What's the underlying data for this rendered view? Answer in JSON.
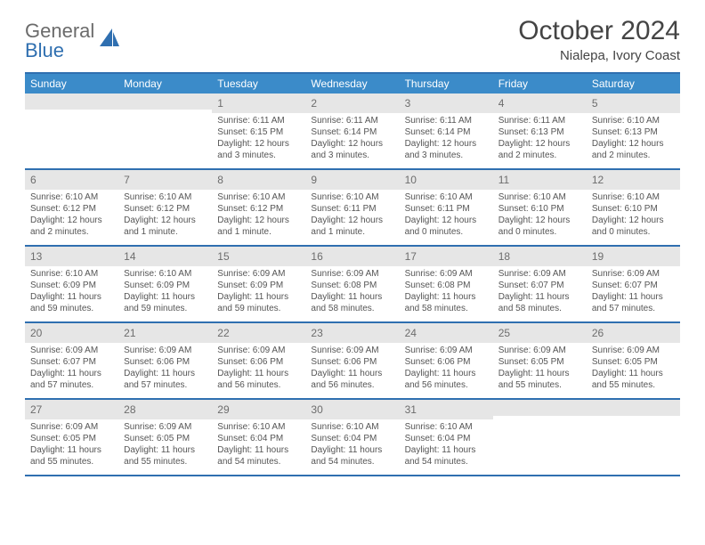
{
  "logo": {
    "textGray": "General",
    "textBlue": "Blue"
  },
  "title": "October 2024",
  "subtitle": "Nialepa, Ivory Coast",
  "colors": {
    "headerBar": "#3b8bc9",
    "borderBlue": "#2f6fb0",
    "dayNumBg": "#e6e6e6",
    "logoGray": "#6b6b6b",
    "logoBlue": "#2f6fb0"
  },
  "dow": [
    "Sunday",
    "Monday",
    "Tuesday",
    "Wednesday",
    "Thursday",
    "Friday",
    "Saturday"
  ],
  "weeks": [
    [
      {
        "n": "",
        "sunrise": "",
        "sunset": "",
        "daylight": ""
      },
      {
        "n": "",
        "sunrise": "",
        "sunset": "",
        "daylight": ""
      },
      {
        "n": "1",
        "sunrise": "Sunrise: 6:11 AM",
        "sunset": "Sunset: 6:15 PM",
        "daylight": "Daylight: 12 hours and 3 minutes."
      },
      {
        "n": "2",
        "sunrise": "Sunrise: 6:11 AM",
        "sunset": "Sunset: 6:14 PM",
        "daylight": "Daylight: 12 hours and 3 minutes."
      },
      {
        "n": "3",
        "sunrise": "Sunrise: 6:11 AM",
        "sunset": "Sunset: 6:14 PM",
        "daylight": "Daylight: 12 hours and 3 minutes."
      },
      {
        "n": "4",
        "sunrise": "Sunrise: 6:11 AM",
        "sunset": "Sunset: 6:13 PM",
        "daylight": "Daylight: 12 hours and 2 minutes."
      },
      {
        "n": "5",
        "sunrise": "Sunrise: 6:10 AM",
        "sunset": "Sunset: 6:13 PM",
        "daylight": "Daylight: 12 hours and 2 minutes."
      }
    ],
    [
      {
        "n": "6",
        "sunrise": "Sunrise: 6:10 AM",
        "sunset": "Sunset: 6:12 PM",
        "daylight": "Daylight: 12 hours and 2 minutes."
      },
      {
        "n": "7",
        "sunrise": "Sunrise: 6:10 AM",
        "sunset": "Sunset: 6:12 PM",
        "daylight": "Daylight: 12 hours and 1 minute."
      },
      {
        "n": "8",
        "sunrise": "Sunrise: 6:10 AM",
        "sunset": "Sunset: 6:12 PM",
        "daylight": "Daylight: 12 hours and 1 minute."
      },
      {
        "n": "9",
        "sunrise": "Sunrise: 6:10 AM",
        "sunset": "Sunset: 6:11 PM",
        "daylight": "Daylight: 12 hours and 1 minute."
      },
      {
        "n": "10",
        "sunrise": "Sunrise: 6:10 AM",
        "sunset": "Sunset: 6:11 PM",
        "daylight": "Daylight: 12 hours and 0 minutes."
      },
      {
        "n": "11",
        "sunrise": "Sunrise: 6:10 AM",
        "sunset": "Sunset: 6:10 PM",
        "daylight": "Daylight: 12 hours and 0 minutes."
      },
      {
        "n": "12",
        "sunrise": "Sunrise: 6:10 AM",
        "sunset": "Sunset: 6:10 PM",
        "daylight": "Daylight: 12 hours and 0 minutes."
      }
    ],
    [
      {
        "n": "13",
        "sunrise": "Sunrise: 6:10 AM",
        "sunset": "Sunset: 6:09 PM",
        "daylight": "Daylight: 11 hours and 59 minutes."
      },
      {
        "n": "14",
        "sunrise": "Sunrise: 6:10 AM",
        "sunset": "Sunset: 6:09 PM",
        "daylight": "Daylight: 11 hours and 59 minutes."
      },
      {
        "n": "15",
        "sunrise": "Sunrise: 6:09 AM",
        "sunset": "Sunset: 6:09 PM",
        "daylight": "Daylight: 11 hours and 59 minutes."
      },
      {
        "n": "16",
        "sunrise": "Sunrise: 6:09 AM",
        "sunset": "Sunset: 6:08 PM",
        "daylight": "Daylight: 11 hours and 58 minutes."
      },
      {
        "n": "17",
        "sunrise": "Sunrise: 6:09 AM",
        "sunset": "Sunset: 6:08 PM",
        "daylight": "Daylight: 11 hours and 58 minutes."
      },
      {
        "n": "18",
        "sunrise": "Sunrise: 6:09 AM",
        "sunset": "Sunset: 6:07 PM",
        "daylight": "Daylight: 11 hours and 58 minutes."
      },
      {
        "n": "19",
        "sunrise": "Sunrise: 6:09 AM",
        "sunset": "Sunset: 6:07 PM",
        "daylight": "Daylight: 11 hours and 57 minutes."
      }
    ],
    [
      {
        "n": "20",
        "sunrise": "Sunrise: 6:09 AM",
        "sunset": "Sunset: 6:07 PM",
        "daylight": "Daylight: 11 hours and 57 minutes."
      },
      {
        "n": "21",
        "sunrise": "Sunrise: 6:09 AM",
        "sunset": "Sunset: 6:06 PM",
        "daylight": "Daylight: 11 hours and 57 minutes."
      },
      {
        "n": "22",
        "sunrise": "Sunrise: 6:09 AM",
        "sunset": "Sunset: 6:06 PM",
        "daylight": "Daylight: 11 hours and 56 minutes."
      },
      {
        "n": "23",
        "sunrise": "Sunrise: 6:09 AM",
        "sunset": "Sunset: 6:06 PM",
        "daylight": "Daylight: 11 hours and 56 minutes."
      },
      {
        "n": "24",
        "sunrise": "Sunrise: 6:09 AM",
        "sunset": "Sunset: 6:06 PM",
        "daylight": "Daylight: 11 hours and 56 minutes."
      },
      {
        "n": "25",
        "sunrise": "Sunrise: 6:09 AM",
        "sunset": "Sunset: 6:05 PM",
        "daylight": "Daylight: 11 hours and 55 minutes."
      },
      {
        "n": "26",
        "sunrise": "Sunrise: 6:09 AM",
        "sunset": "Sunset: 6:05 PM",
        "daylight": "Daylight: 11 hours and 55 minutes."
      }
    ],
    [
      {
        "n": "27",
        "sunrise": "Sunrise: 6:09 AM",
        "sunset": "Sunset: 6:05 PM",
        "daylight": "Daylight: 11 hours and 55 minutes."
      },
      {
        "n": "28",
        "sunrise": "Sunrise: 6:09 AM",
        "sunset": "Sunset: 6:05 PM",
        "daylight": "Daylight: 11 hours and 55 minutes."
      },
      {
        "n": "29",
        "sunrise": "Sunrise: 6:10 AM",
        "sunset": "Sunset: 6:04 PM",
        "daylight": "Daylight: 11 hours and 54 minutes."
      },
      {
        "n": "30",
        "sunrise": "Sunrise: 6:10 AM",
        "sunset": "Sunset: 6:04 PM",
        "daylight": "Daylight: 11 hours and 54 minutes."
      },
      {
        "n": "31",
        "sunrise": "Sunrise: 6:10 AM",
        "sunset": "Sunset: 6:04 PM",
        "daylight": "Daylight: 11 hours and 54 minutes."
      },
      {
        "n": "",
        "sunrise": "",
        "sunset": "",
        "daylight": ""
      },
      {
        "n": "",
        "sunrise": "",
        "sunset": "",
        "daylight": ""
      }
    ]
  ]
}
